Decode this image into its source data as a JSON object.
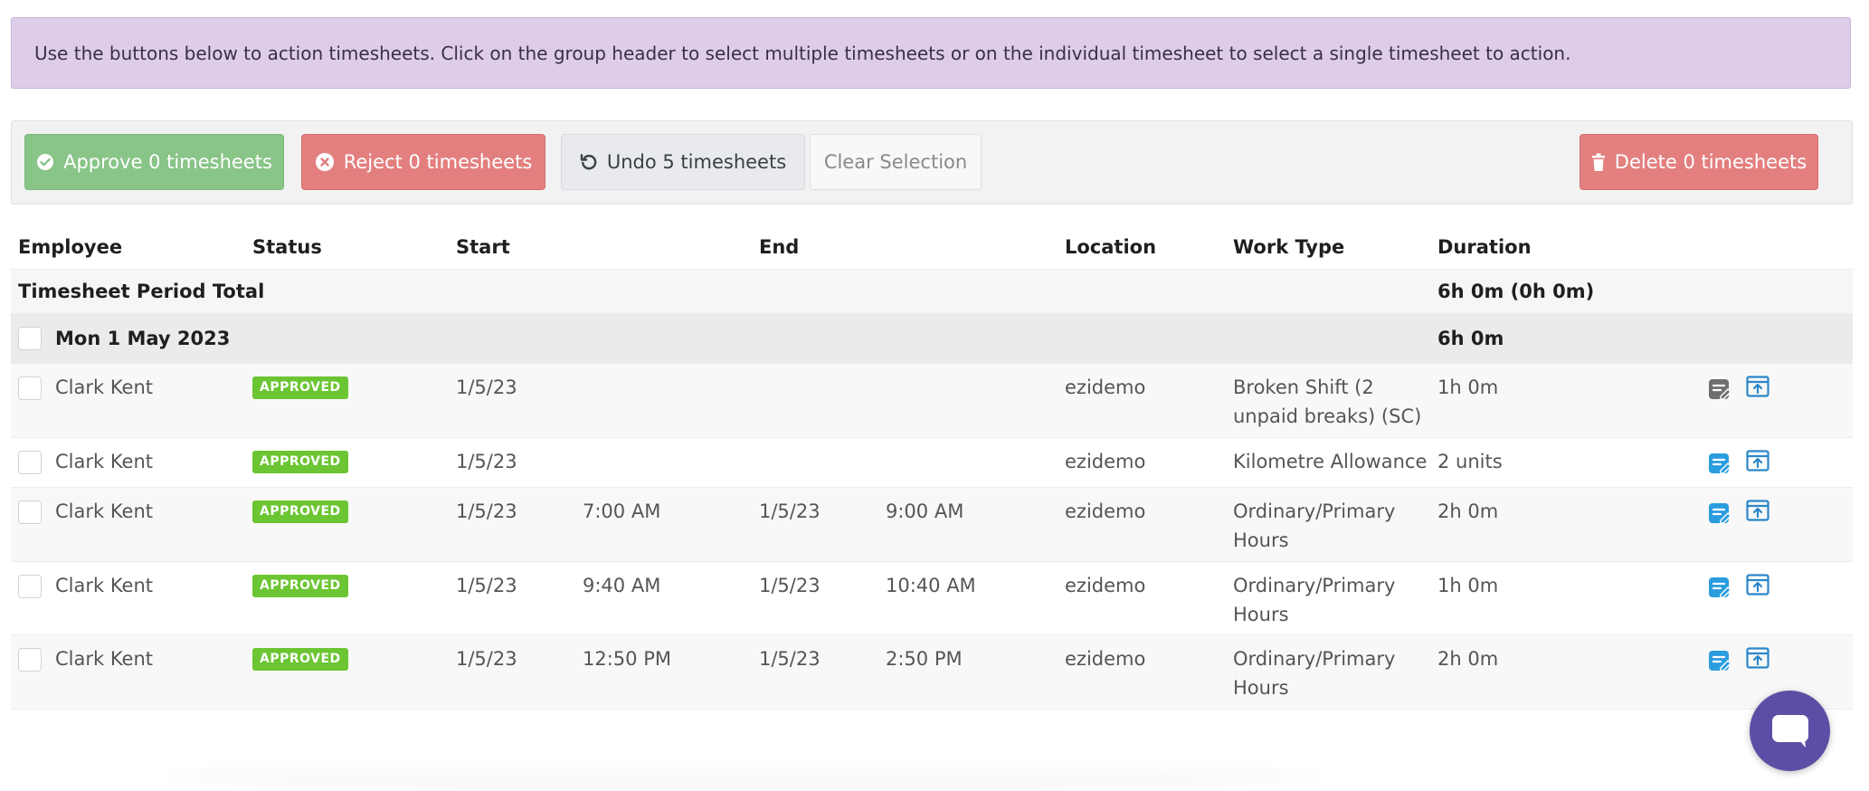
{
  "notice": {
    "text": "Use the buttons below to action timesheets. Click on the group header to select multiple timesheets or on the individual timesheet to select a single timesheet to action."
  },
  "toolbar": {
    "approve_label": "Approve 0 timesheets",
    "reject_label": "Reject 0 timesheets",
    "undo_label": "Undo 5 timesheets",
    "clear_label": "Clear Selection",
    "delete_label": "Delete 0 timesheets"
  },
  "columns": {
    "employee": "Employee",
    "status": "Status",
    "start": "Start",
    "end": "End",
    "location": "Location",
    "work_type": "Work Type",
    "duration": "Duration"
  },
  "period_total": {
    "label": "Timesheet Period Total",
    "duration": "6h 0m (0h 0m)"
  },
  "group": {
    "label": "Mon 1 May 2023",
    "duration": "6h 0m"
  },
  "rows": [
    {
      "employee": "Clark Kent",
      "status": "APPROVED",
      "start_date": "1/5/23",
      "start_time": "",
      "end_date": "",
      "end_time": "",
      "location": "ezidemo",
      "work_type": "Broken Shift (2 unpaid breaks) (SC)",
      "duration": "1h 0m",
      "note_icon": "note-grey-icon"
    },
    {
      "employee": "Clark Kent",
      "status": "APPROVED",
      "start_date": "1/5/23",
      "start_time": "",
      "end_date": "",
      "end_time": "",
      "location": "ezidemo",
      "work_type": "Kilometre Allowance",
      "duration": "2 units",
      "note_icon": "note-blue-icon"
    },
    {
      "employee": "Clark Kent",
      "status": "APPROVED",
      "start_date": "1/5/23",
      "start_time": "7:00 AM",
      "end_date": "1/5/23",
      "end_time": "9:00 AM",
      "location": "ezidemo",
      "work_type": "Ordinary/Primary Hours",
      "duration": "2h 0m",
      "note_icon": "note-blue-icon"
    },
    {
      "employee": "Clark Kent",
      "status": "APPROVED",
      "start_date": "1/5/23",
      "start_time": "9:40 AM",
      "end_date": "1/5/23",
      "end_time": "10:40 AM",
      "location": "ezidemo",
      "work_type": "Ordinary/Primary Hours",
      "duration": "1h 0m",
      "note_icon": "note-blue-icon"
    },
    {
      "employee": "Clark Kent",
      "status": "APPROVED",
      "start_date": "1/5/23",
      "start_time": "12:50 PM",
      "end_date": "1/5/23",
      "end_time": "2:50 PM",
      "location": "ezidemo",
      "work_type": "Ordinary/Primary Hours",
      "duration": "2h 0m",
      "note_icon": "note-blue-icon"
    }
  ],
  "colors": {
    "approve": "#89c488",
    "reject": "#e37f7f",
    "badge": "#6cc532",
    "icon_blue": "#2a9ddf",
    "chat": "#5b4ea4"
  }
}
